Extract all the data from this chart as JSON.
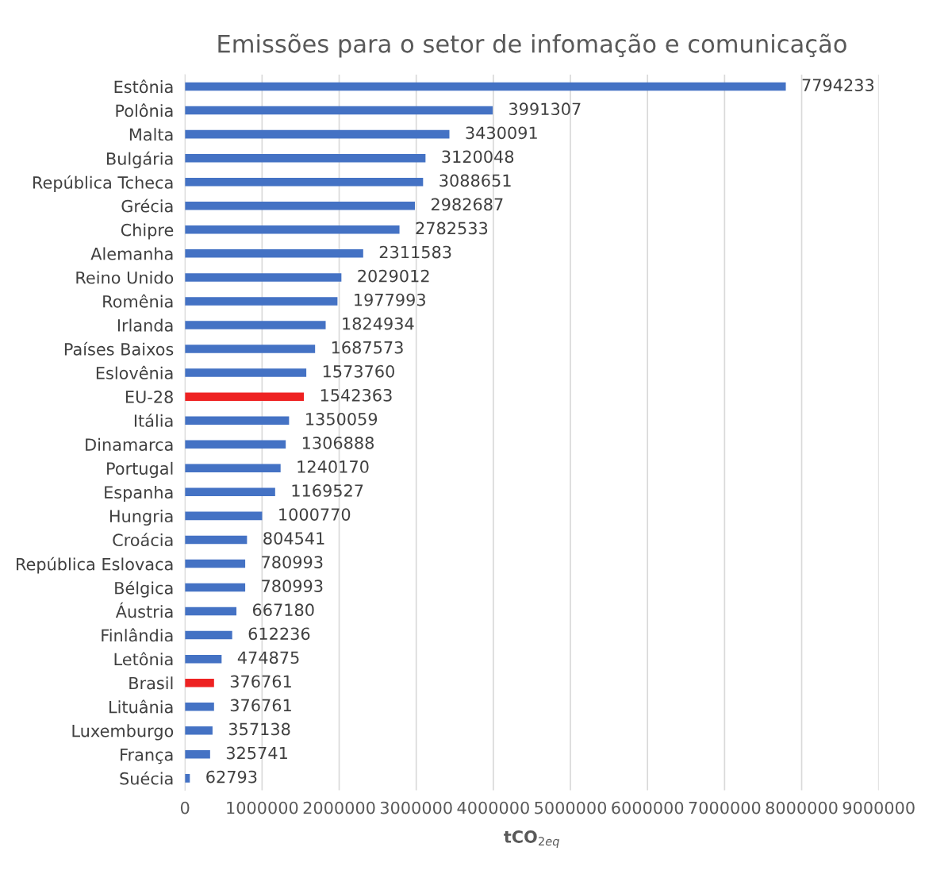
{
  "chart_data": {
    "type": "bar",
    "orientation": "horizontal",
    "title": "Emissões para o setor de infomação e comunicação",
    "xlabel": "tCO$_{2eq}$",
    "categories": [
      "Estônia",
      "Polônia",
      "Malta",
      "Bulgária",
      "República Tcheca",
      "Grécia",
      "Chipre",
      "Alemanha",
      "Reino Unido",
      "Romênia",
      "Irlanda",
      "Países Baixos",
      "Eslovênia",
      "EU-28",
      "Itália",
      "Dinamarca",
      "Portugal",
      "Espanha",
      "Hungria",
      "Croácia",
      "República Eslovaca",
      "Bélgica",
      "Áustria",
      "Finlândia",
      "Letônia",
      "Brasil",
      "Lituânia",
      "Luxemburgo",
      "França",
      "Suécia"
    ],
    "values": [
      7794233,
      3991307,
      3430091,
      3120048,
      3088651,
      2982687,
      2782533,
      2311583,
      2029012,
      1977993,
      1824934,
      1687573,
      1573760,
      1542363,
      1350059,
      1306888,
      1240170,
      1169527,
      1000770,
      804541,
      780993,
      780993,
      667180,
      612236,
      474875,
      376761,
      376761,
      357138,
      325741,
      62793
    ],
    "colors": [
      "#4472c4",
      "#4472c4",
      "#4472c4",
      "#4472c4",
      "#4472c4",
      "#4472c4",
      "#4472c4",
      "#4472c4",
      "#4472c4",
      "#4472c4",
      "#4472c4",
      "#4472c4",
      "#4472c4",
      "#ee2222",
      "#4472c4",
      "#4472c4",
      "#4472c4",
      "#4472c4",
      "#4472c4",
      "#4472c4",
      "#4472c4",
      "#4472c4",
      "#4472c4",
      "#4472c4",
      "#4472c4",
      "#ee2222",
      "#4472c4",
      "#4472c4",
      "#4472c4",
      "#4472c4"
    ],
    "xlim": [
      0,
      9000000
    ],
    "xticks": [
      0,
      1000000,
      2000000,
      3000000,
      4000000,
      5000000,
      6000000,
      7000000,
      8000000,
      9000000
    ],
    "grid": "x",
    "data_labels": true
  }
}
